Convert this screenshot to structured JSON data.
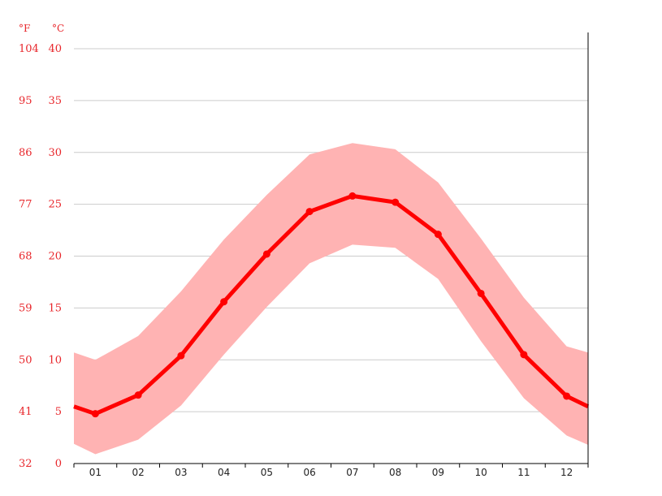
{
  "chart_data": {
    "type": "line",
    "title": "",
    "xlabel": "",
    "ylabel": "",
    "units": {
      "left": "°F",
      "right": "°C"
    },
    "categories": [
      "01",
      "02",
      "03",
      "04",
      "05",
      "06",
      "07",
      "08",
      "09",
      "10",
      "11",
      "12"
    ],
    "ylim": [
      0,
      40
    ],
    "y_ticks_c": [
      0,
      5,
      10,
      15,
      20,
      25,
      30,
      35,
      40
    ],
    "y_ticks_f": [
      32,
      41,
      50,
      59,
      68,
      77,
      86,
      95,
      104
    ],
    "grid": true,
    "series": [
      {
        "role": "mean",
        "values": [
          4.8,
          6.6,
          10.4,
          15.6,
          20.2,
          24.3,
          25.8,
          25.2,
          22.1,
          16.4,
          10.5,
          6.5
        ]
      },
      {
        "role": "range-max",
        "values": [
          10.0,
          12.3,
          16.6,
          21.6,
          25.9,
          29.8,
          30.9,
          30.3,
          27.1,
          21.7,
          16.0,
          11.3
        ]
      },
      {
        "role": "range-min",
        "values": [
          0.9,
          2.3,
          5.6,
          10.5,
          15.1,
          19.3,
          21.1,
          20.8,
          17.8,
          11.8,
          6.3,
          2.7
        ]
      }
    ],
    "edge_values": {
      "mean": [
        5.5,
        5.5
      ],
      "max": [
        10.7,
        10.7
      ],
      "min": [
        1.9,
        1.8
      ]
    },
    "colors": {
      "line": "#ff0000",
      "band": "#ffb3b3",
      "label": "#e8262b",
      "grid": "#cccccc"
    }
  }
}
